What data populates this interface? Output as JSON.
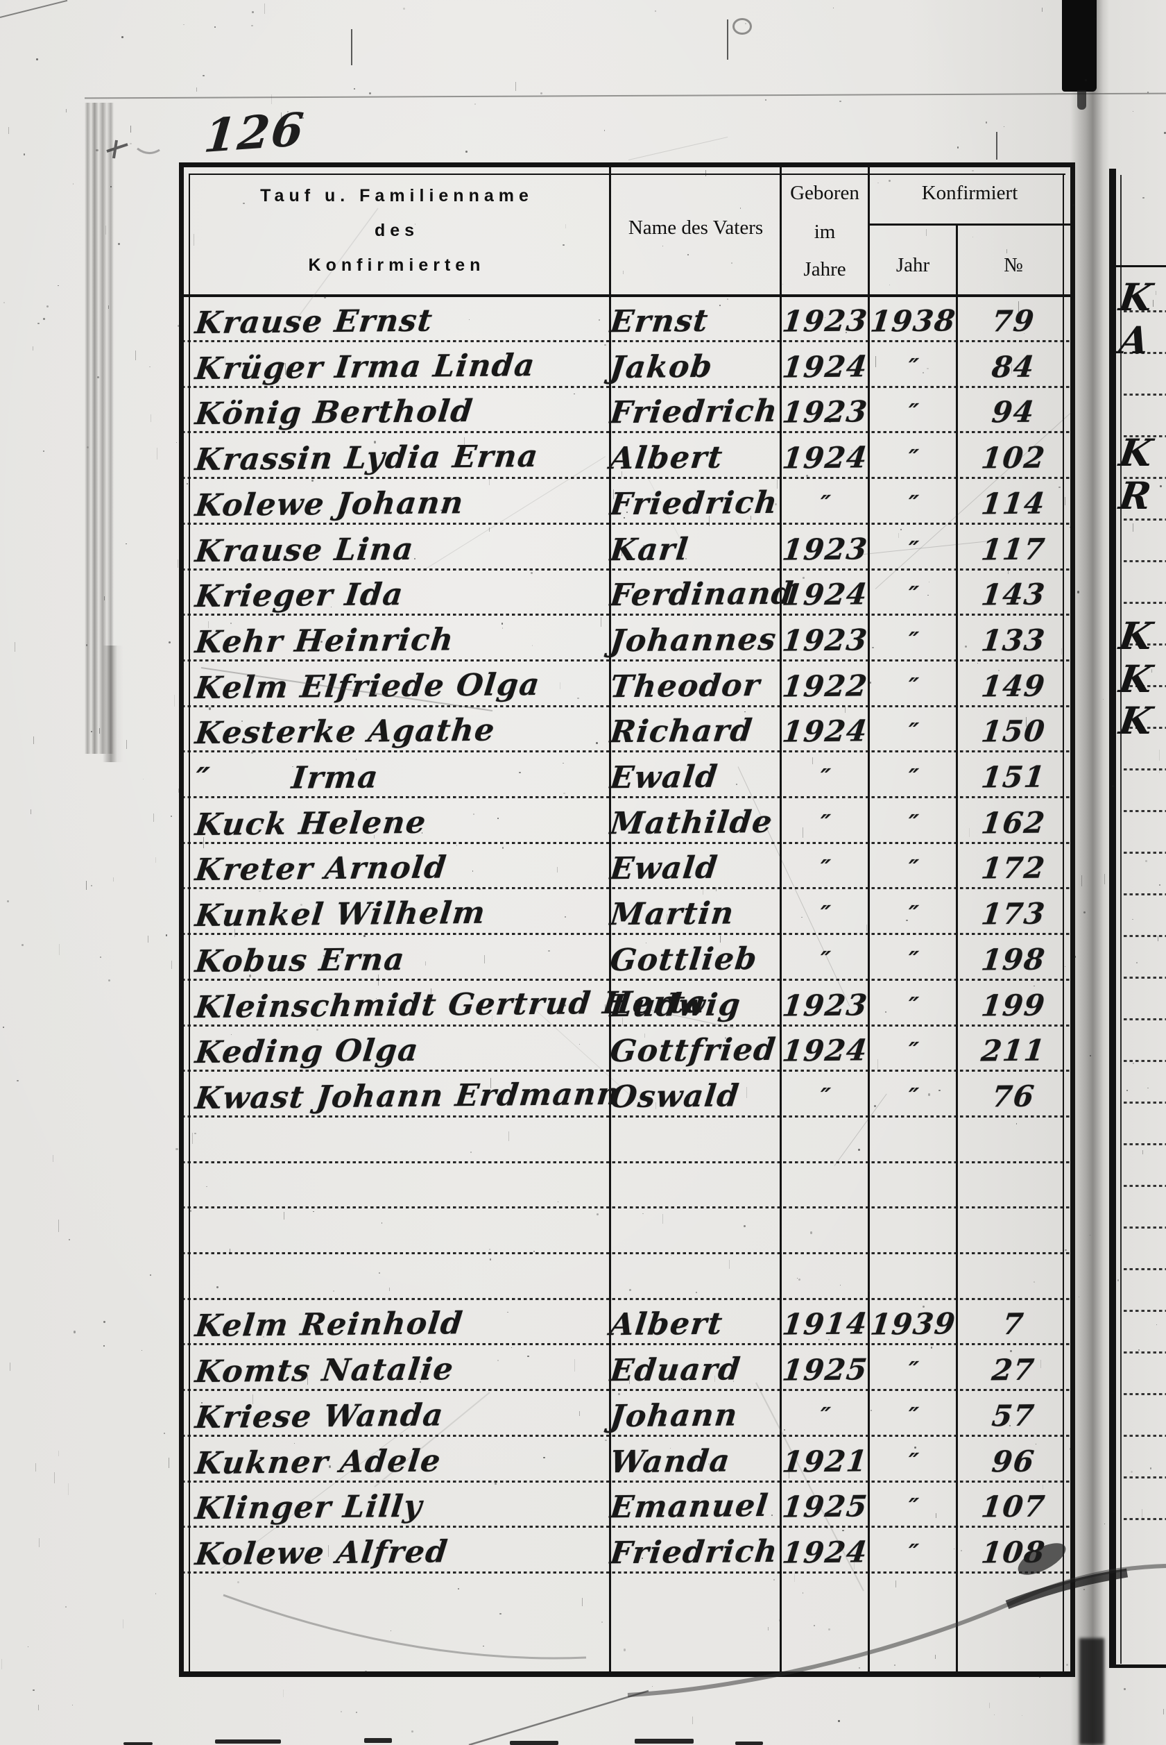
{
  "page": {
    "number": "126"
  },
  "colors": {
    "paper": "#e7e6e3",
    "ink": "#181818",
    "line": "#131313"
  },
  "table": {
    "header": {
      "name_lines": [
        "Tauf u. Familienname",
        "des",
        "Konfirmierten"
      ],
      "father": "Name des Vaters",
      "born_lines": [
        "Geboren",
        "im",
        "Jahre"
      ],
      "confirmed": "Konfirmiert",
      "year": "Jahr",
      "no": "№"
    },
    "ditto_mark": "″",
    "rows": [
      {
        "name": "Krause Ernst",
        "father": "Ernst",
        "born": "1923",
        "year": "1938",
        "no": "79"
      },
      {
        "name": "Krüger Irma Linda",
        "father": "Jakob",
        "born": "1924",
        "year": "″",
        "no": "84"
      },
      {
        "name": "König Berthold",
        "father": "Friedrich",
        "born": "1923",
        "year": "″",
        "no": "94"
      },
      {
        "name": "Krassin Lydia Erna",
        "father": "Albert",
        "born": "1924",
        "year": "″",
        "no": "102"
      },
      {
        "name": "Kolewe Johann",
        "father": "Friedrich",
        "born": "″",
        "year": "″",
        "no": "114"
      },
      {
        "name": "Krause Lina",
        "father": "Karl",
        "born": "1923",
        "year": "″",
        "no": "117"
      },
      {
        "name": "Krieger Ida",
        "father": "Ferdinand",
        "born": "1924",
        "year": "″",
        "no": "143"
      },
      {
        "name": "Kehr Heinrich",
        "father": "Johannes",
        "born": "1923",
        "year": "″",
        "no": "133"
      },
      {
        "name": "Kelm Elfriede Olga",
        "father": "Theodor",
        "born": "1922",
        "year": "″",
        "no": "149"
      },
      {
        "name": "Kesterke Agathe",
        "father": "Richard",
        "born": "1924",
        "year": "″",
        "no": "150"
      },
      {
        "name": "″       Irma",
        "father": "Ewald",
        "born": "″",
        "year": "″",
        "no": "151"
      },
      {
        "name": "Kuck Helene",
        "father": "Mathilde",
        "born": "″",
        "year": "″",
        "no": "162"
      },
      {
        "name": "Kreter Arnold",
        "father": "Ewald",
        "born": "″",
        "year": "″",
        "no": "172"
      },
      {
        "name": "Kunkel Wilhelm",
        "father": "Martin",
        "born": "″",
        "year": "″",
        "no": "173"
      },
      {
        "name": "Kobus Erna",
        "father": "Gottlieb",
        "born": "″",
        "year": "″",
        "no": "198"
      },
      {
        "name": "Kleinschmidt Gertrud Herta",
        "father": "Ludwig",
        "born": "1923",
        "year": "″",
        "no": "199"
      },
      {
        "name": "Keding Olga",
        "father": "Gottfried",
        "born": "1924",
        "year": "″",
        "no": "211"
      },
      {
        "name": "Kwast Johann Erdmann",
        "father": "Oswald",
        "born": "″",
        "year": "″",
        "no": "76"
      },
      {
        "name": "",
        "father": "",
        "born": "",
        "year": "",
        "no": ""
      },
      {
        "name": "",
        "father": "",
        "born": "",
        "year": "",
        "no": ""
      },
      {
        "name": "",
        "father": "",
        "born": "",
        "year": "",
        "no": ""
      },
      {
        "name": "",
        "father": "",
        "born": "",
        "year": "",
        "no": ""
      },
      {
        "name": "Kelm Reinhold",
        "father": "Albert",
        "born": "1914",
        "year": "1939",
        "no": "7"
      },
      {
        "name": "Komts Natalie",
        "father": "Eduard",
        "born": "1925",
        "year": "″",
        "no": "27"
      },
      {
        "name": "Kriese Wanda",
        "father": "Johann",
        "born": "″",
        "year": "″",
        "no": "57"
      },
      {
        "name": "Kukner Adele",
        "father": "Wanda",
        "born": "1921",
        "year": "″",
        "no": "96"
      },
      {
        "name": "Klinger Lilly",
        "father": "Emanuel",
        "born": "1925",
        "year": "″",
        "no": "107"
      },
      {
        "name": "Kolewe Alfred",
        "father": "Friedrich",
        "born": "1924",
        "year": "″",
        "no": "108"
      }
    ]
  },
  "right_page": {
    "fragments": [
      "K",
      "A",
      "K",
      "R",
      "K",
      "K",
      "K"
    ]
  }
}
